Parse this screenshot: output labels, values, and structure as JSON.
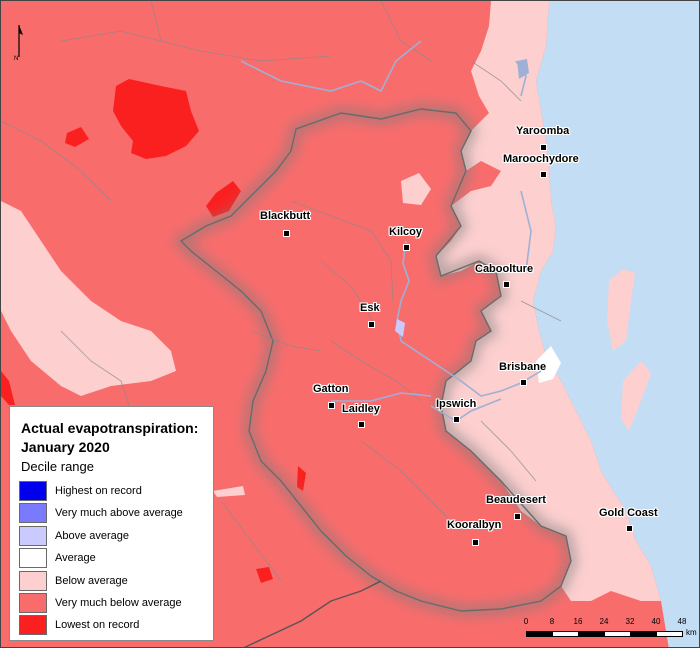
{
  "legend": {
    "title_line1": "Actual evapotranspiration:",
    "title_line2": "January 2020",
    "subtitle": "Decile range",
    "items": [
      {
        "label": "Highest on record",
        "color": "#0000ee"
      },
      {
        "label": "Very much above average",
        "color": "#7a7aff"
      },
      {
        "label": "Above average",
        "color": "#cacaff"
      },
      {
        "label": "Average",
        "color": "#ffffff"
      },
      {
        "label": "Below average",
        "color": "#fdcfcf"
      },
      {
        "label": "Very much below average",
        "color": "#f96c6c"
      },
      {
        "label": "Lowest on record",
        "color": "#fb2020"
      }
    ]
  },
  "towns": {
    "yaroomba": "Yaroomba",
    "maroochydore": "Maroochydore",
    "blackbutt": "Blackbutt",
    "kilcoy": "Kilcoy",
    "caboolture": "Caboolture",
    "esk": "Esk",
    "brisbane": "Brisbane",
    "gatton": "Gatton",
    "laidley": "Laidley",
    "ipswich": "Ipswich",
    "beaudesert": "Beaudesert",
    "gold_coast": "Gold Coast",
    "kooralbyn": "Kooralbyn"
  },
  "north_arrow": {
    "label": "N"
  },
  "scale": {
    "ticks": [
      "0",
      "8",
      "16",
      "24",
      "32",
      "40",
      "48"
    ],
    "unit": "km"
  },
  "colors": {
    "ocean": "#c3ddf5",
    "very_much_below": "#f96c6c",
    "below": "#fdcfcf",
    "lowest": "#fb2020",
    "river": "#9fb0d6",
    "boundary": "#7c7c7c"
  }
}
